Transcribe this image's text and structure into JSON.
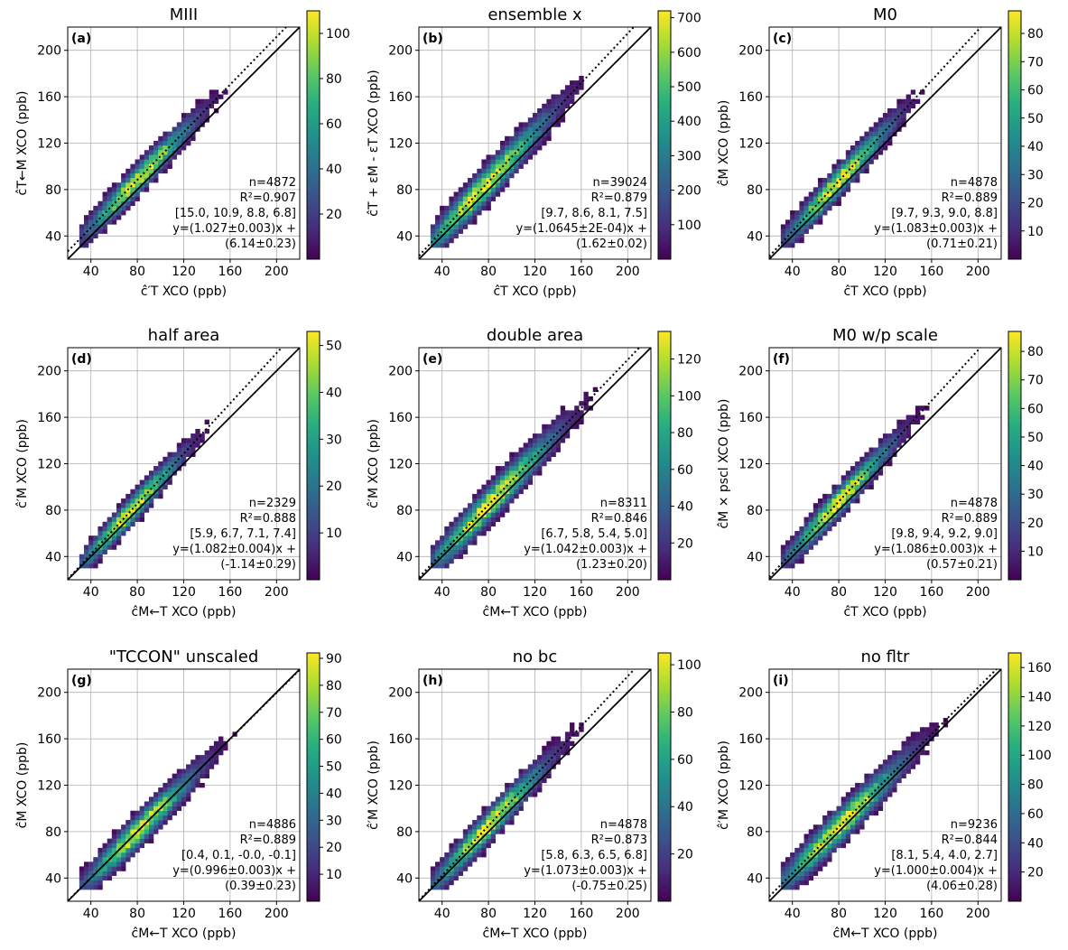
{
  "figure": {
    "axis_ticks": [
      40,
      80,
      120,
      160,
      200
    ],
    "axis_range": [
      20,
      220
    ]
  },
  "chart_data": [
    {
      "type": "heatmap",
      "panel_label": "(a)",
      "title": "MIII",
      "xlabel": "ĉ′T XCO (ppb)",
      "ylabel": "ĉT←M XCO (ppb)",
      "colorbar_ticks": [
        20,
        40,
        60,
        80,
        100
      ],
      "colorbar_max": 110,
      "stats": [
        "n=4872",
        "R²=0.907",
        "[15.0, 10.9, 8.8, 6.8]",
        "y=(1.027±0.003)x +",
        "(6.14±0.23)"
      ],
      "slope": 1.027,
      "intercept": 6.14,
      "center": [
        80,
        88
      ],
      "spread": 15
    },
    {
      "type": "heatmap",
      "panel_label": "(b)",
      "title": "ensemble x",
      "xlabel": "ĉT XCO (ppb)",
      "ylabel": "ĉT + εM - εT XCO (ppb)",
      "colorbar_ticks": [
        100,
        200,
        300,
        400,
        500,
        600,
        700
      ],
      "colorbar_max": 720,
      "stats": [
        "n=39024",
        "R²=0.879",
        "[9.7, 8.6, 8.1, 7.5]",
        "y=(1.0645±2E-04)x +",
        "(1.62±0.02)"
      ],
      "slope": 1.0645,
      "intercept": 1.62,
      "center": [
        75,
        80
      ],
      "spread": 18
    },
    {
      "type": "heatmap",
      "panel_label": "(c)",
      "title": "M0",
      "xlabel": "ĉT XCO (ppb)",
      "ylabel": "ĉM XCO (ppb)",
      "colorbar_ticks": [
        10,
        20,
        30,
        40,
        50,
        60,
        70,
        80
      ],
      "colorbar_max": 88,
      "stats": [
        "n=4878",
        "R²=0.889",
        "[9.7, 9.3, 9.0, 8.8]",
        "y=(1.083±0.003)x +",
        "(0.71±0.21)"
      ],
      "slope": 1.083,
      "intercept": 0.71,
      "center": [
        78,
        84
      ],
      "spread": 15
    },
    {
      "type": "heatmap",
      "panel_label": "(d)",
      "title": "half area",
      "xlabel": "ĉM←T XCO (ppb)",
      "ylabel": "ĉ′M XCO (ppb)",
      "colorbar_ticks": [
        10,
        20,
        30,
        40,
        50
      ],
      "colorbar_max": 53,
      "stats": [
        "n=2329",
        "R²=0.888",
        "[5.9, 6.7, 7.1, 7.4]",
        "y=(1.082±0.004)x +",
        "(-1.14±0.29)"
      ],
      "slope": 1.082,
      "intercept": -1.14,
      "center": [
        72,
        76
      ],
      "spread": 14
    },
    {
      "type": "heatmap",
      "panel_label": "(e)",
      "title": "double area",
      "xlabel": "ĉM←T XCO (ppb)",
      "ylabel": "ĉ′M XCO (ppb)",
      "colorbar_ticks": [
        20,
        40,
        60,
        80,
        100,
        120
      ],
      "colorbar_max": 135,
      "stats": [
        "n=8311",
        "R²=0.846",
        "[6.7, 5.8, 5.4, 5.0]",
        "y=(1.042±0.003)x +",
        "(1.23±0.20)"
      ],
      "slope": 1.042,
      "intercept": 1.23,
      "center": [
        80,
        84
      ],
      "spread": 18
    },
    {
      "type": "heatmap",
      "panel_label": "(f)",
      "title": "M0 w/p scale",
      "xlabel": "ĉT XCO (ppb)",
      "ylabel": "ĉM × pscl XCO (ppb)",
      "colorbar_ticks": [
        10,
        20,
        30,
        40,
        50,
        60,
        70,
        80
      ],
      "colorbar_max": 87,
      "stats": [
        "n=4878",
        "R²=0.889",
        "[9.8, 9.4, 9.2, 9.0]",
        "y=(1.086±0.003)x +",
        "(0.57±0.21)"
      ],
      "slope": 1.086,
      "intercept": 0.57,
      "center": [
        78,
        84
      ],
      "spread": 15
    },
    {
      "type": "heatmap",
      "panel_label": "(g)",
      "title": "\"TCCON\" unscaled",
      "xlabel": "ĉM←T XCO (ppb)",
      "ylabel": "ĉM XCO (ppb)",
      "colorbar_ticks": [
        10,
        20,
        30,
        40,
        50,
        60,
        70,
        80,
        90
      ],
      "colorbar_max": 92,
      "stats": [
        "n=4886",
        "R²=0.889",
        "[0.4, 0.1, -0.0, -0.1]",
        "y=(0.996±0.003)x +",
        "(0.39±0.23)"
      ],
      "slope": 0.996,
      "intercept": 0.39,
      "center": [
        80,
        80
      ],
      "spread": 16
    },
    {
      "type": "heatmap",
      "panel_label": "(h)",
      "title": "no bc",
      "xlabel": "ĉM←T XCO (ppb)",
      "ylabel": "ĉ′M XCO (ppb)",
      "colorbar_ticks": [
        20,
        40,
        60,
        80,
        100
      ],
      "colorbar_max": 105,
      "stats": [
        "n=4878",
        "R²=0.873",
        "[5.8, 6.3, 6.5, 6.8]",
        "y=(1.073±0.003)x +",
        "(-0.75±0.25)"
      ],
      "slope": 1.073,
      "intercept": -0.75,
      "center": [
        78,
        82
      ],
      "spread": 16
    },
    {
      "type": "heatmap",
      "panel_label": "(i)",
      "title": "no fltr",
      "xlabel": "ĉM←T XCO (ppb)",
      "ylabel": "ĉ′M XCO (ppb)",
      "colorbar_ticks": [
        20,
        40,
        60,
        80,
        100,
        120,
        140,
        160
      ],
      "colorbar_max": 170,
      "stats": [
        "n=9236",
        "R²=0.844",
        "[8.1, 5.4, 4.0, 2.7]",
        "y=(1.000±0.004)x +",
        "(4.06±0.28)"
      ],
      "slope": 1.0,
      "intercept": 4.06,
      "center": [
        80,
        84
      ],
      "spread": 18
    }
  ]
}
